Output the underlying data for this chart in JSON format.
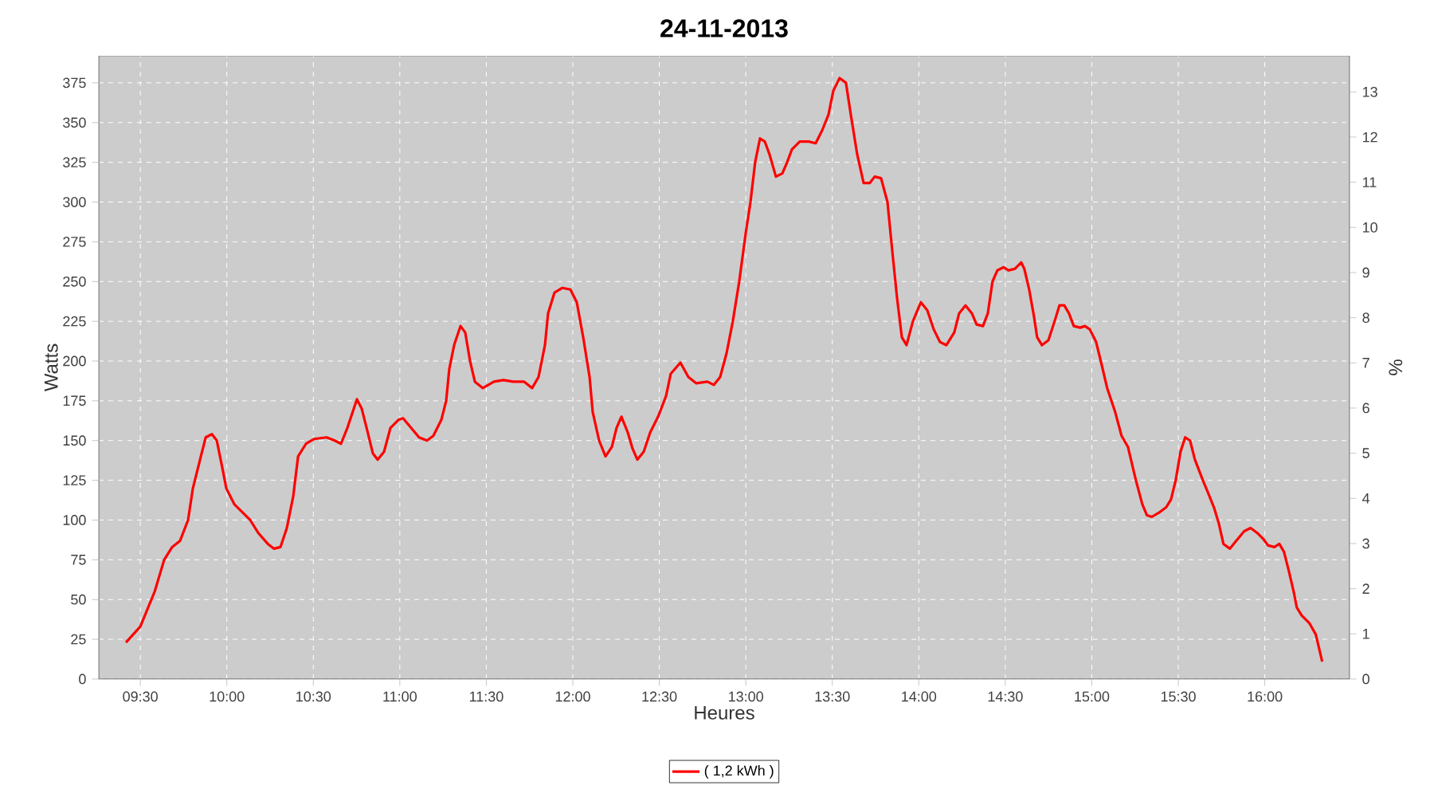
{
  "chart_data": {
    "type": "line",
    "title": "24-11-2013",
    "xlabel": "Heures",
    "ylabel": "Watts",
    "y2label": "%",
    "xlim": [
      9.26,
      16.49
    ],
    "xticks": [
      {
        "value": 9.5,
        "label": "09:30"
      },
      {
        "value": 10,
        "label": "10:00"
      },
      {
        "value": 10.5,
        "label": "10:30"
      },
      {
        "value": 11,
        "label": "11:00"
      },
      {
        "value": 11.5,
        "label": "11:30"
      },
      {
        "value": 12,
        "label": "12:00"
      },
      {
        "value": 12.5,
        "label": "12:30"
      },
      {
        "value": 13,
        "label": "13:00"
      },
      {
        "value": 13.5,
        "label": "13:30"
      },
      {
        "value": 14,
        "label": "14:00"
      },
      {
        "value": 14.5,
        "label": "14:30"
      },
      {
        "value": 15,
        "label": "15:00"
      },
      {
        "value": 15.5,
        "label": "15:30"
      },
      {
        "value": 16,
        "label": "16:00"
      }
    ],
    "ylim": [
      0,
      392
    ],
    "yticks": [
      0,
      25,
      50,
      75,
      100,
      125,
      150,
      175,
      200,
      225,
      250,
      275,
      300,
      325,
      350,
      375
    ],
    "y2lim": [
      0,
      13.8
    ],
    "y2ticks": [
      0,
      1,
      2,
      3,
      4,
      5,
      6,
      7,
      8,
      9,
      10,
      11,
      12,
      13
    ],
    "grid": true,
    "legend": "bottom",
    "line_style": "solid",
    "marker": "none",
    "series": [
      {
        "name": "( 1,2 kWh )",
        "color": "#ff0000",
        "x": [
          9.417,
          9.5,
          9.583,
          9.638,
          9.684,
          9.73,
          9.776,
          9.804,
          9.85,
          9.878,
          9.914,
          9.942,
          9.97,
          9.997,
          10.043,
          10.089,
          10.135,
          10.181,
          10.237,
          10.273,
          10.31,
          10.347,
          10.384,
          10.412,
          10.458,
          10.504,
          10.577,
          10.623,
          10.66,
          10.697,
          10.734,
          10.752,
          10.78,
          10.808,
          10.844,
          10.872,
          10.909,
          10.946,
          10.992,
          11.019,
          11.065,
          11.111,
          11.157,
          11.194,
          11.24,
          11.268,
          11.286,
          11.314,
          11.351,
          11.378,
          11.406,
          11.434,
          11.48,
          11.544,
          11.599,
          11.655,
          11.719,
          11.765,
          11.802,
          11.839,
          11.857,
          11.894,
          11.94,
          11.986,
          12.023,
          12.06,
          12.097,
          12.115,
          12.152,
          12.189,
          12.226,
          12.253,
          12.281,
          12.318,
          12.345,
          12.373,
          12.41,
          12.447,
          12.493,
          12.539,
          12.566,
          12.622,
          12.668,
          12.714,
          12.778,
          12.815,
          12.852,
          12.889,
          12.925,
          12.962,
          12.999,
          13.027,
          13.054,
          13.082,
          13.11,
          13.137,
          13.174,
          13.211,
          13.239,
          13.266,
          13.312,
          13.367,
          13.404,
          13.441,
          13.478,
          13.506,
          13.542,
          13.579,
          13.607,
          13.644,
          13.681,
          13.717,
          13.745,
          13.782,
          13.819,
          13.846,
          13.874,
          13.902,
          13.929,
          13.966,
          14.012,
          14.049,
          14.086,
          14.122,
          14.159,
          14.205,
          14.233,
          14.27,
          14.307,
          14.334,
          14.371,
          14.399,
          14.426,
          14.454,
          14.491,
          14.518,
          14.555,
          14.592,
          14.61,
          14.638,
          14.666,
          14.684,
          14.712,
          14.749,
          14.785,
          14.813,
          14.841,
          14.868,
          14.896,
          14.933,
          14.96,
          14.988,
          15.025,
          15.052,
          15.089,
          15.135,
          15.172,
          15.209,
          15.255,
          15.292,
          15.319,
          15.347,
          15.393,
          15.43,
          15.458,
          15.485,
          15.513,
          15.54,
          15.568,
          15.596,
          15.642,
          15.669,
          15.706,
          15.734,
          15.761,
          15.798,
          15.835,
          15.881,
          15.918,
          15.955,
          15.992,
          16.019,
          16.056,
          16.084,
          16.111,
          16.139,
          16.167,
          16.185,
          16.213,
          16.259,
          16.295,
          16.332
        ],
        "values": [
          23,
          33,
          55,
          75,
          83,
          87,
          100,
          120,
          140,
          152,
          154,
          150,
          135,
          120,
          110,
          105,
          100,
          92,
          85,
          82,
          83,
          95,
          115,
          140,
          148,
          151,
          152,
          150,
          148,
          158,
          170,
          176,
          170,
          158,
          142,
          138,
          143,
          158,
          163,
          164,
          158,
          152,
          150,
          153,
          163,
          175,
          195,
          210,
          222,
          218,
          200,
          187,
          183,
          187,
          188,
          187,
          187,
          183,
          190,
          210,
          230,
          243,
          246,
          245,
          237,
          215,
          190,
          168,
          150,
          140,
          146,
          158,
          165,
          155,
          145,
          138,
          143,
          155,
          165,
          178,
          192,
          199,
          190,
          186,
          187,
          185,
          190,
          205,
          225,
          250,
          280,
          300,
          325,
          340,
          338,
          330,
          316,
          318,
          325,
          333,
          338,
          338,
          337,
          345,
          355,
          370,
          378,
          375,
          355,
          330,
          312,
          312,
          316,
          315,
          300,
          270,
          240,
          215,
          210,
          225,
          237,
          232,
          220,
          212,
          210,
          218,
          230,
          235,
          230,
          223,
          222,
          230,
          250,
          257,
          259,
          257,
          258,
          262,
          258,
          245,
          228,
          215,
          210,
          213,
          225,
          235,
          235,
          230,
          222,
          221,
          222,
          220,
          212,
          200,
          183,
          168,
          153,
          146,
          125,
          110,
          103,
          102,
          105,
          108,
          113,
          125,
          143,
          152,
          150,
          138,
          125,
          118,
          108,
          98,
          85,
          82,
          87,
          93,
          95,
          92,
          88,
          84,
          83,
          85,
          80,
          68,
          55,
          45,
          40,
          35,
          28,
          11
        ]
      }
    ]
  }
}
